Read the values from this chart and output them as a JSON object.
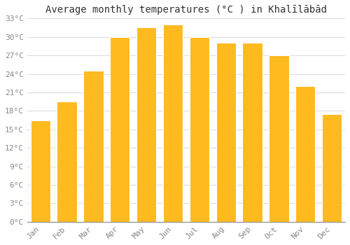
{
  "title": "Average monthly temperatures (°C ) in Khalīlābād",
  "months": [
    "Jan",
    "Feb",
    "Mar",
    "Apr",
    "May",
    "Jun",
    "Jul",
    "Aug",
    "Sep",
    "Oct",
    "Nov",
    "Dec"
  ],
  "values": [
    16.5,
    19.5,
    24.5,
    30.0,
    31.5,
    32.0,
    30.0,
    29.0,
    29.0,
    27.0,
    22.0,
    17.5
  ],
  "bar_color": "#FFBA20",
  "ylim": [
    0,
    33
  ],
  "yticks": [
    0,
    3,
    6,
    9,
    12,
    15,
    18,
    21,
    24,
    27,
    30,
    33
  ],
  "ytick_labels": [
    "0°C",
    "3°C",
    "6°C",
    "9°C",
    "12°C",
    "15°C",
    "18°C",
    "21°C",
    "24°C",
    "27°C",
    "30°C",
    "33°C"
  ],
  "background_color": "#ffffff",
  "bar_edge_color": "#ffffff",
  "grid_color": "#dddddd",
  "title_fontsize": 10,
  "tick_fontsize": 8,
  "tick_color": "#888888",
  "bar_width": 0.75
}
